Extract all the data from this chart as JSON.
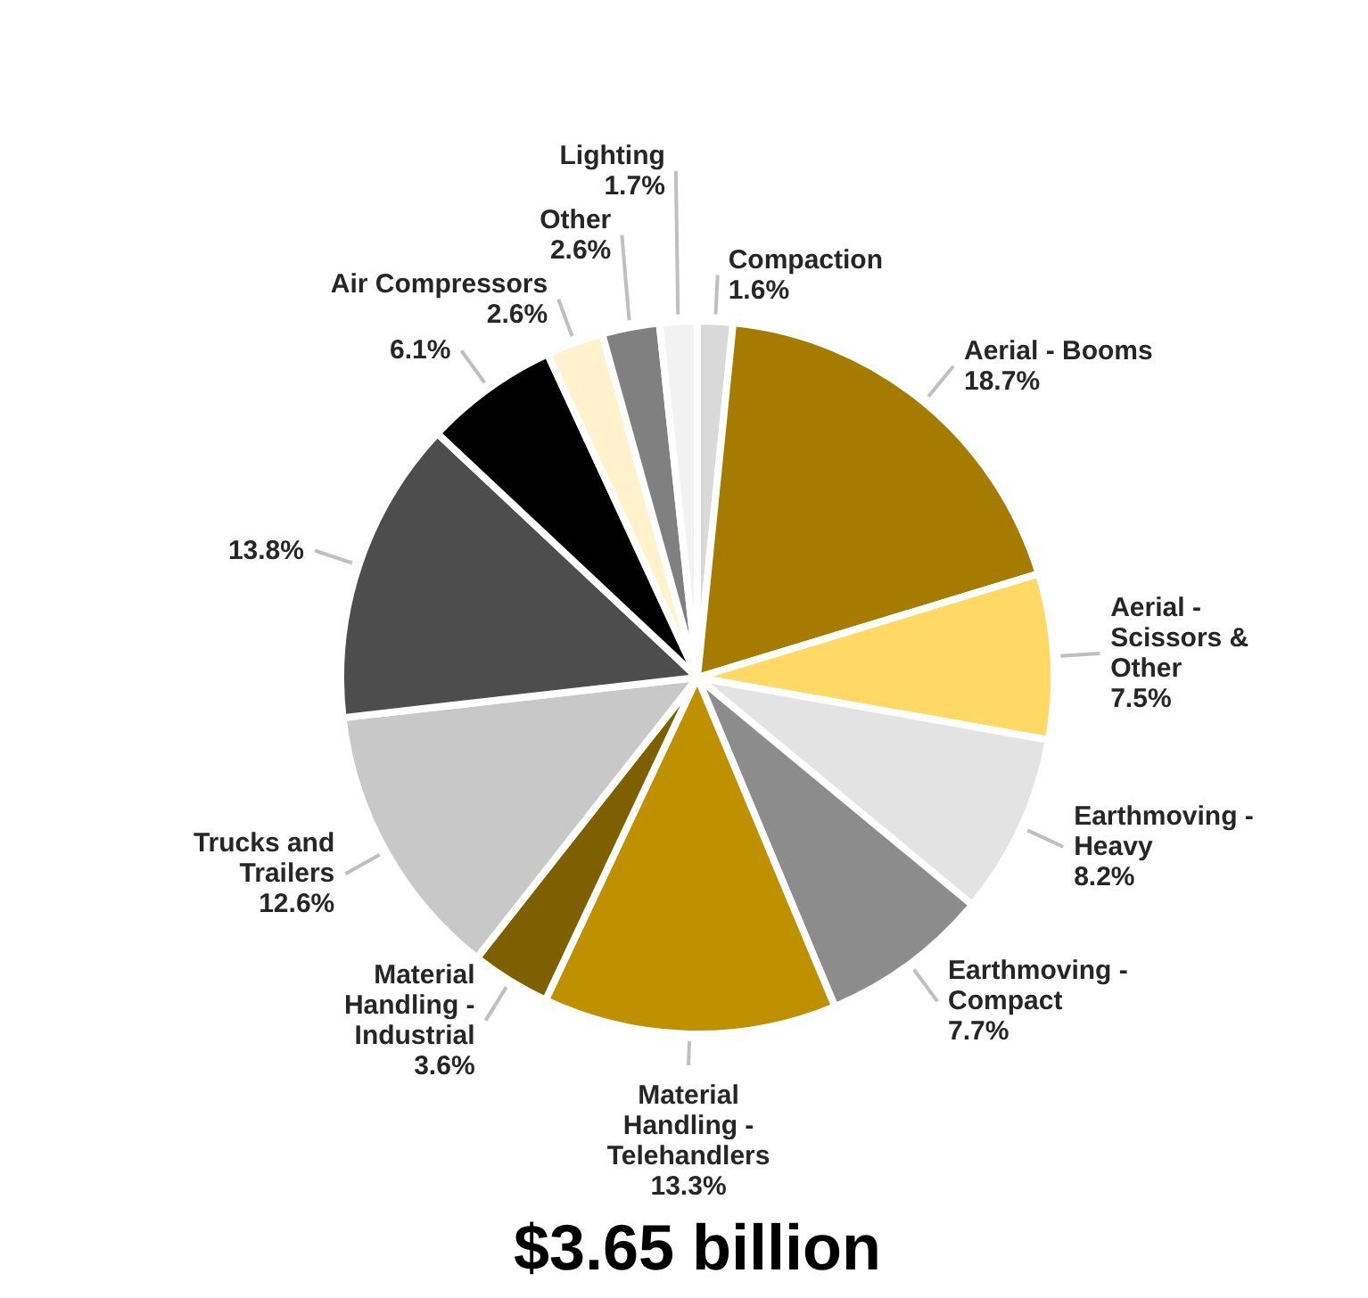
{
  "chart_data": {
    "type": "pie",
    "title": "$3.65 billion",
    "categories": [
      "Compaction",
      "Aerial - Booms",
      "Aerial - Scissors & Other",
      "Earthmoving - Heavy",
      "Earthmoving - Compact",
      "Material Handling - Telehandlers",
      "Material Handling - Industrial",
      "Trucks and Trailers",
      null,
      null,
      "Air Compressors",
      "Other",
      "Lighting"
    ],
    "values": [
      1.6,
      18.7,
      7.5,
      8.2,
      7.7,
      13.3,
      3.6,
      12.6,
      13.8,
      6.1,
      2.6,
      2.6,
      1.7
    ],
    "value_labels": [
      "1.6%",
      "18.7%",
      "7.5%",
      "8.2%",
      "7.7%",
      "13.3%",
      "3.6%",
      "12.6%",
      "13.8%",
      "6.1%",
      "2.6%",
      "2.6%",
      "1.7%"
    ],
    "colors": [
      "#d9d9d9",
      "#a67c00",
      "#ffd966",
      "#e3e3e3",
      "#8c8c8c",
      "#bf9000",
      "#7f6000",
      "#c8c8c8",
      "#4d4d4d",
      "#000000",
      "#fff2cc",
      "#808080",
      "#f2f2f2"
    ]
  }
}
